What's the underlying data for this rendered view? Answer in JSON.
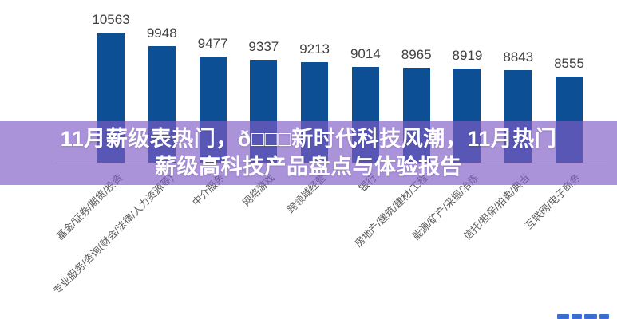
{
  "banner": {
    "line1": "11月薪级表热门，ð□□□新时代科技风潮，11月热门",
    "line2": "薪级高科技产品盘点与体验报告",
    "background_color": "#805bc7",
    "text_color": "#ffffff"
  },
  "chart_data": {
    "type": "bar",
    "title": "",
    "categories": [
      "基金/证券/期货/投资",
      "专业服务/咨询(财会/法律/人力资源等)",
      "中介服务",
      "网络游戏",
      "跨领域经营",
      "银行",
      "房地产/建筑/建材/工程",
      "能源/矿产/采掘/冶炼",
      "信托/担保/拍卖/典当",
      "互联网/电子商务"
    ],
    "values": [
      10563,
      9948,
      9477,
      9337,
      9213,
      9014,
      8965,
      8919,
      8843,
      8555
    ],
    "xlabel": "",
    "ylabel": "",
    "ylim": [
      4600,
      11000
    ],
    "grid": false,
    "legend": false,
    "bar_color": "#0d4f94",
    "value_label_color": "#3f3f3f",
    "category_label_color": "#595959",
    "category_label_rotation_deg": 45
  },
  "watermark": {
    "color": "#3a6ed2",
    "note": "clipped-blue-text-fragment-at-bottom-edge"
  }
}
